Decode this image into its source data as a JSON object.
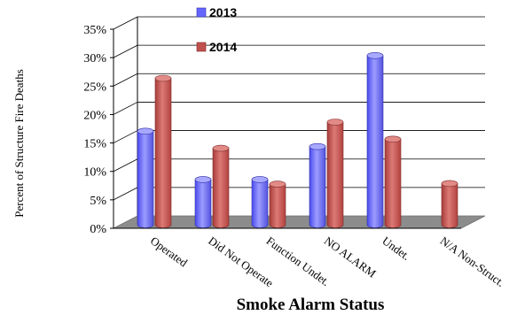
{
  "chart_data": {
    "type": "bar",
    "title": "",
    "xlabel": "Smoke Alarm Status",
    "ylabel": "Percent of Structure Fire Deaths",
    "categories": [
      "Operated",
      "Did Not Operate",
      "Function Undet.",
      "NO ALARM",
      "Undet.",
      "N/A Non-Struct."
    ],
    "series": [
      {
        "name": "2013",
        "values": [
          18,
          9.5,
          9.5,
          15.3,
          31.3,
          0
        ],
        "color": "#6666ff"
      },
      {
        "name": "2014",
        "values": [
          27.3,
          15,
          8.7,
          19.6,
          16.6,
          8.8
        ],
        "color": "#c0504d"
      }
    ],
    "ylim": [
      0,
      35
    ],
    "yticks": [
      "0%",
      "5%",
      "10%",
      "15%",
      "20%",
      "25%",
      "30%",
      "35%"
    ],
    "grid": true,
    "legend_position": "top-center"
  }
}
